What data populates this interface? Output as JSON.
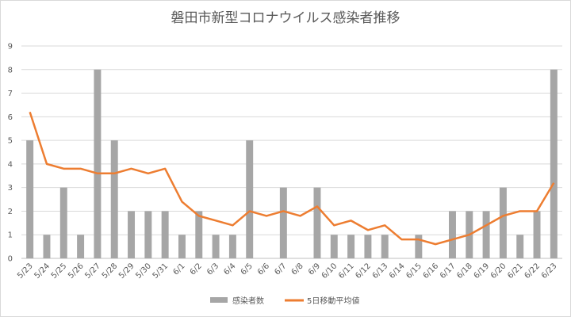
{
  "chart_data": {
    "type": "bar",
    "title": "磐田市新型コロナウイルス感染者推移",
    "xlabel": "",
    "ylabel": "",
    "ylim": [
      0,
      9
    ],
    "yticks": [
      0,
      1,
      2,
      3,
      4,
      5,
      6,
      7,
      8,
      9
    ],
    "grid": true,
    "legend": "bottom",
    "categories": [
      "5/23",
      "5/24",
      "5/25",
      "5/26",
      "5/27",
      "5/28",
      "5/29",
      "5/30",
      "5/31",
      "6/1",
      "6/2",
      "6/3",
      "6/4",
      "6/5",
      "6/6",
      "6/7",
      "6/8",
      "6/9",
      "6/10",
      "6/11",
      "6/12",
      "6/13",
      "6/14",
      "6/15",
      "6/16",
      "6/17",
      "6/18",
      "6/19",
      "6/20",
      "6/21",
      "6/22",
      "6/23"
    ],
    "series": [
      {
        "name": "感染者数",
        "type": "bar",
        "color": "#a6a6a6",
        "values": [
          5,
          1,
          3,
          1,
          8,
          5,
          2,
          2,
          2,
          1,
          2,
          1,
          1,
          5,
          0,
          3,
          0,
          3,
          1,
          1,
          1,
          1,
          0,
          1,
          0,
          2,
          2,
          2,
          3,
          1,
          2,
          8
        ]
      },
      {
        "name": "5日移動平均値",
        "type": "line",
        "color": "#ed7d31",
        "values": [
          6.2,
          4.0,
          3.8,
          3.8,
          3.6,
          3.6,
          3.8,
          3.6,
          3.8,
          2.4,
          1.8,
          1.6,
          1.4,
          2.0,
          1.8,
          2.0,
          1.8,
          2.2,
          1.4,
          1.6,
          1.2,
          1.4,
          0.8,
          0.8,
          0.6,
          0.8,
          1.0,
          1.4,
          1.8,
          2.0,
          2.0,
          3.2
        ]
      }
    ]
  }
}
